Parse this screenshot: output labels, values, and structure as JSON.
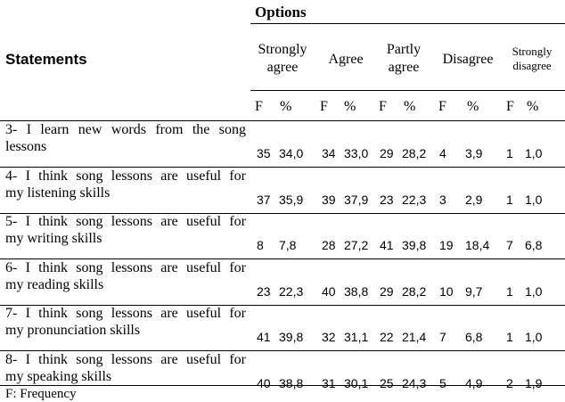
{
  "table": {
    "options_title": "Options",
    "statements_title": "Statements",
    "options": [
      {
        "line1": "Strongly",
        "line2": "agree"
      },
      {
        "line1": "Agree",
        "line2": ""
      },
      {
        "line1": "Partly",
        "line2": "agree"
      },
      {
        "line1": "Disagree",
        "line2": ""
      },
      {
        "line1": "Strongly",
        "line2": "disagree"
      }
    ],
    "sub_f": "F",
    "sub_pct": "%",
    "rows": [
      {
        "line1": "3- I learn new words from the song",
        "line2": "lessons",
        "values": [
          "35",
          "34,0",
          "34",
          "33,0",
          "29",
          "28,2",
          "4",
          "3,9",
          "1",
          "1,0"
        ]
      },
      {
        "line1": "4- I think song lessons are useful for",
        "line2": "my listening skills",
        "values": [
          "37",
          "35,9",
          "39",
          "37,9",
          "23",
          "22,3",
          "3",
          "2,9",
          "1",
          "1,0"
        ]
      },
      {
        "line1": "5- I think song lessons are useful for",
        "line2": "my writing skills",
        "values": [
          "8",
          "7,8",
          "28",
          "27,2",
          "41",
          "39,8",
          "19",
          "18,4",
          "7",
          "6,8"
        ]
      },
      {
        "line1": "6- I think song lessons are useful for",
        "line2": "my reading skills",
        "values": [
          "23",
          "22,3",
          "40",
          "38,8",
          "29",
          "28,2",
          "10",
          "9,7",
          "1",
          "1,0"
        ]
      },
      {
        "line1": "7- I think song lessons are useful for",
        "line2": "my pronunciation skills",
        "values": [
          "41",
          "39,8",
          "32",
          "31,1",
          "22",
          "21,4",
          "7",
          "6,8",
          "1",
          "1,0"
        ]
      },
      {
        "line1": "8- I think song lessons are useful for",
        "line2": "my speaking skills",
        "values": [
          "40",
          "38,8",
          "31",
          "30,1",
          "25",
          "24,3",
          "5",
          "4,9",
          "2",
          "1,9"
        ]
      }
    ],
    "footnote": "F: Frequency"
  }
}
